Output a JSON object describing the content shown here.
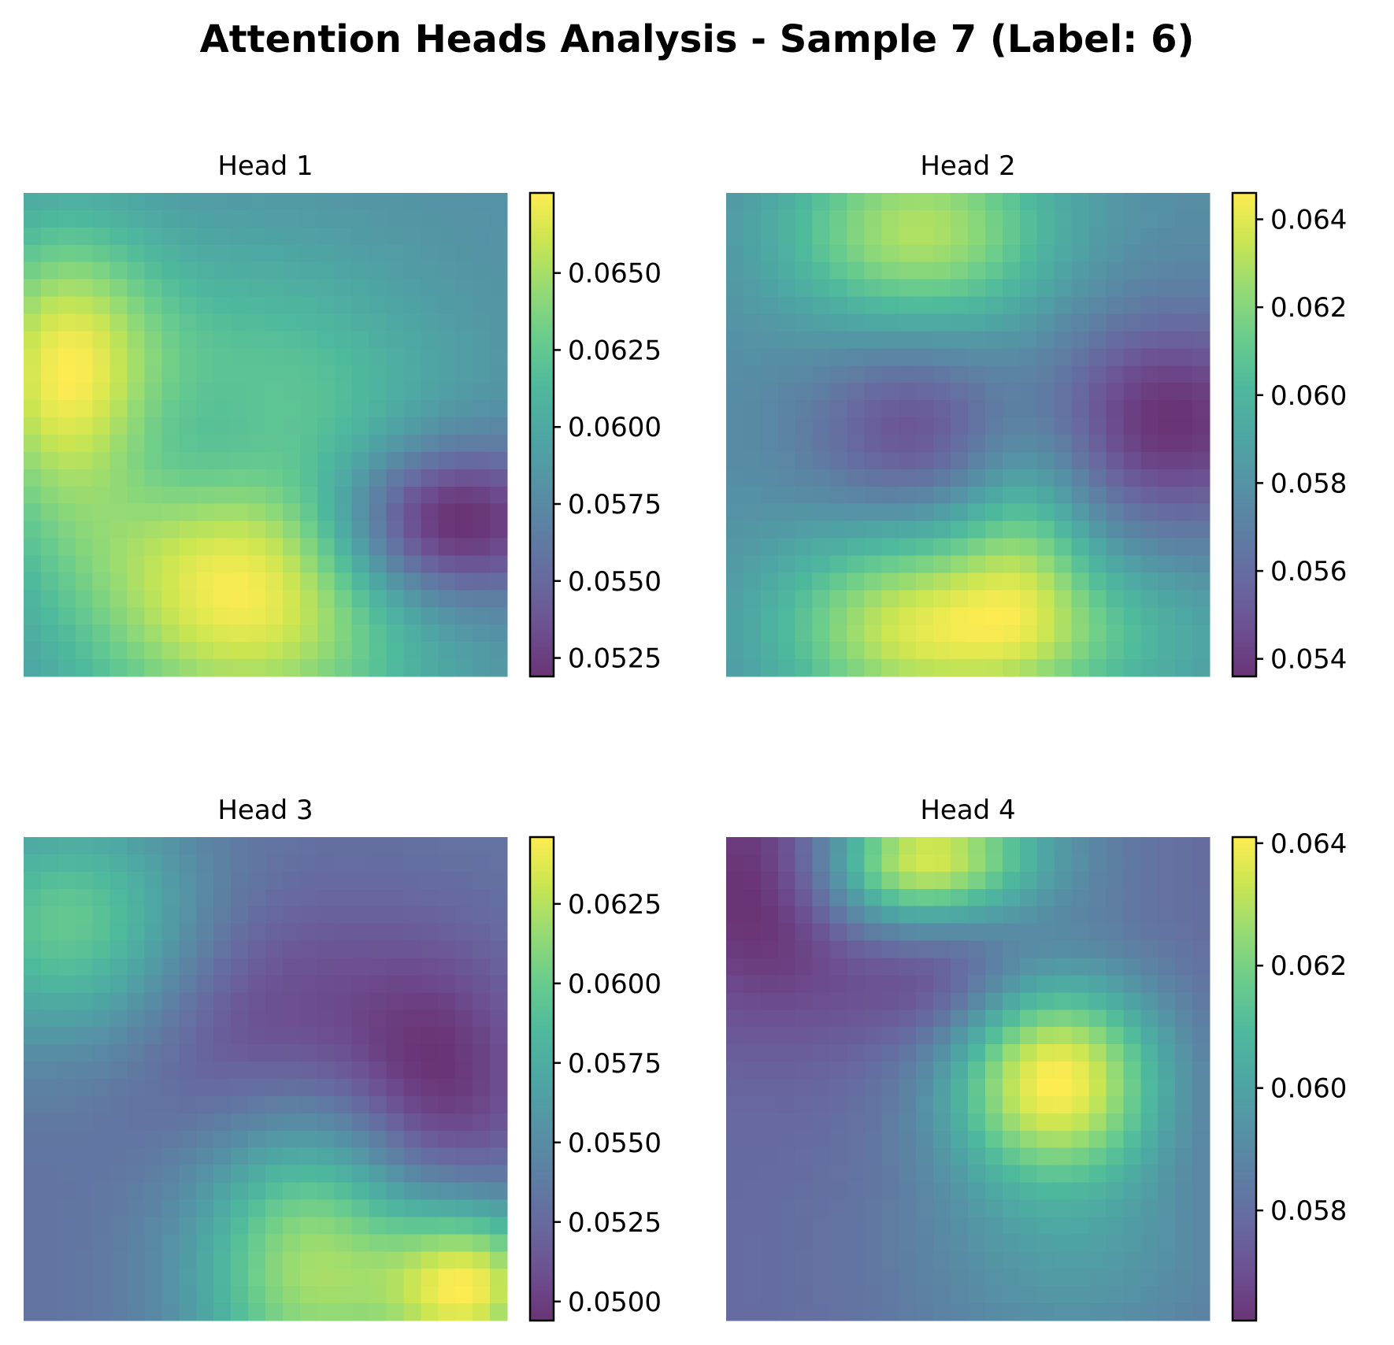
{
  "figure": {
    "title": "Attention Heads Analysis - Sample 7 (Label: 6)",
    "colormap": "viridis",
    "colormap_alpha": 0.8,
    "axes_visible": false
  },
  "chart_data": [
    {
      "type": "heatmap",
      "title": "Head 1",
      "grid": [
        28,
        28
      ],
      "colorbar": {
        "range": [
          0.0519,
          0.0676
        ],
        "ticks": [
          "0.0525",
          "0.0550",
          "0.0575",
          "0.0600",
          "0.0625",
          "0.0650"
        ]
      },
      "blobs": [
        {
          "center": [
            0.7,
            0.46
          ],
          "sigma": [
            0.3,
            0.26
          ],
          "amp": 0.7
        },
        {
          "center": [
            0.37,
            0.08
          ],
          "sigma": [
            0.22,
            0.14
          ],
          "amp": 0.5
        },
        {
          "center": [
            0.68,
            0.85
          ],
          "sigma": [
            0.12,
            0.18
          ],
          "amp": -0.55
        },
        {
          "center": [
            0.55,
            0.38
          ],
          "sigma": [
            0.14,
            0.2
          ],
          "amp": -0.35
        }
      ]
    },
    {
      "type": "heatmap",
      "title": "Head 2",
      "grid": [
        28,
        28
      ],
      "colorbar": {
        "range": [
          0.0536,
          0.0646
        ],
        "ticks": [
          "0.054",
          "0.056",
          "0.058",
          "0.060",
          "0.062",
          "0.064"
        ]
      },
      "blobs": [
        {
          "center": [
            0.08,
            0.4
          ],
          "sigma": [
            0.15,
            0.2
          ],
          "amp": 0.9
        },
        {
          "center": [
            0.9,
            0.4
          ],
          "sigma": [
            0.15,
            0.21
          ],
          "amp": 1.0
        },
        {
          "center": [
            0.49,
            0.38
          ],
          "sigma": [
            0.14,
            0.15
          ],
          "amp": -0.5
        },
        {
          "center": [
            0.47,
            0.92
          ],
          "sigma": [
            0.16,
            0.18
          ],
          "amp": -0.7
        },
        {
          "center": [
            0.72,
            0.62
          ],
          "sigma": [
            0.18,
            0.1
          ],
          "amp": 0.45
        },
        {
          "center": [
            0.92,
            0.78
          ],
          "sigma": [
            0.12,
            0.2
          ],
          "amp": 0.35
        }
      ]
    },
    {
      "type": "heatmap",
      "title": "Head 3",
      "grid": [
        28,
        28
      ],
      "colorbar": {
        "range": [
          0.0494,
          0.0646
        ],
        "ticks": [
          "0.0500",
          "0.0525",
          "0.0550",
          "0.0575",
          "0.0600",
          "0.0625"
        ]
      },
      "blobs": [
        {
          "center": [
            0.93,
            0.93
          ],
          "sigma": [
            0.12,
            0.12
          ],
          "amp": 0.45
        },
        {
          "center": [
            0.18,
            0.1
          ],
          "sigma": [
            0.18,
            0.2
          ],
          "amp": 0.3
        },
        {
          "center": [
            0.52,
            0.85
          ],
          "sigma": [
            0.2,
            0.14
          ],
          "amp": -0.18
        },
        {
          "center": [
            0.88,
            0.6
          ],
          "sigma": [
            0.24,
            0.18
          ],
          "amp": 0.4
        },
        {
          "center": [
            0.4,
            0.5
          ],
          "sigma": [
            0.2,
            0.2
          ],
          "amp": -0.15
        }
      ]
    },
    {
      "type": "heatmap",
      "title": "Head 4",
      "grid": [
        28,
        28
      ],
      "colorbar": {
        "range": [
          0.0562,
          0.0641
        ],
        "ticks": [
          "0.058",
          "0.060",
          "0.062",
          "0.064"
        ]
      },
      "blobs": [
        {
          "center": [
            0.06,
            0.37
          ],
          "sigma": [
            0.11,
            0.14
          ],
          "amp": 0.6
        },
        {
          "center": [
            0.5,
            0.68
          ],
          "sigma": [
            0.15,
            0.16
          ],
          "amp": 0.9
        },
        {
          "center": [
            0.03,
            0.5
          ],
          "sigma": [
            0.1,
            0.18
          ],
          "amp": 0.4
        },
        {
          "center": [
            0.28,
            0.45
          ],
          "sigma": [
            0.12,
            0.12
          ],
          "amp": -0.2
        },
        {
          "center": [
            0.1,
            0.1
          ],
          "sigma": [
            0.2,
            0.18
          ],
          "amp": -0.3
        },
        {
          "center": [
            0.88,
            0.72
          ],
          "sigma": [
            0.18,
            0.26
          ],
          "amp": 0.25
        }
      ]
    }
  ]
}
